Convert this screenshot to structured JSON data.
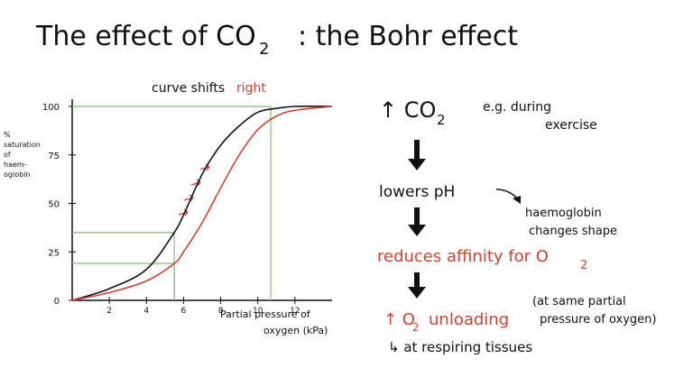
{
  "header": {
    "title": "The effect of CO",
    "title_sub": "2",
    "title_rest": ": the Bohr effect"
  },
  "chart_data": {
    "type": "line",
    "annotation": "curve shifts",
    "annotation_emphasis": "right",
    "y_label": [
      "%",
      "saturation",
      "of",
      "haem-",
      "oglobin"
    ],
    "x_label": [
      "Partial pressure of",
      "oxygen (kPa)"
    ],
    "x": [
      0,
      2,
      4,
      5.5,
      6,
      7,
      8,
      9,
      10,
      11,
      12,
      14
    ],
    "series": [
      {
        "color": "#111111",
        "values": [
          0,
          6,
          16,
          35,
          44,
          65,
          80,
          90,
          97,
          99,
          100,
          100
        ]
      },
      {
        "color": "#d0422f",
        "values": [
          0,
          4,
          10,
          19,
          25,
          40,
          58,
          75,
          88,
          95,
          98,
          100
        ]
      }
    ],
    "guides": [
      {
        "x": 5.5,
        "y": 35
      },
      {
        "x": 5.5,
        "y": 19
      },
      {
        "x": 10.7,
        "y": 100
      }
    ],
    "guide_color": "#7cc46a",
    "xlim": [
      0,
      14
    ],
    "xticks": [
      2,
      4,
      6,
      8,
      10,
      12
    ],
    "ylim": [
      0,
      100
    ],
    "yticks": [
      0,
      25,
      50,
      75,
      100
    ]
  },
  "notes": {
    "co2": "↑ CO",
    "co2_sub": "2",
    "example": [
      "e.g. during",
      "exercise"
    ],
    "step1": "lowers pH",
    "side": [
      "haemoglobin",
      "changes shape"
    ],
    "step2": "reduces affinity for O",
    "step2_sub": "2",
    "step3": "↑ O",
    "step3_sub": "2",
    "step3_rest": "unloading",
    "condition": [
      "(at same partial",
      "pressure of oxygen)"
    ],
    "location": "↳ at respiring tissues"
  }
}
